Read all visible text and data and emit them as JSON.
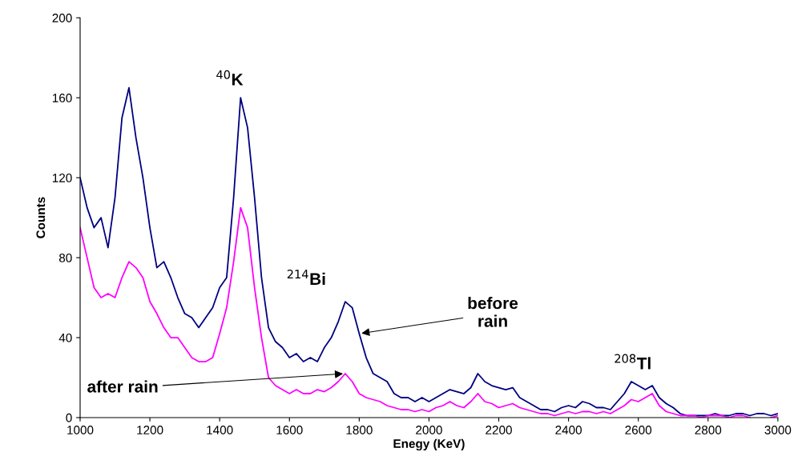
{
  "chart_data": {
    "type": "line",
    "xlabel": "Enegy (KeV)",
    "ylabel": "Counts",
    "xlim": [
      1000,
      3000
    ],
    "xticks": [
      1000,
      1200,
      1400,
      1600,
      1800,
      2000,
      2200,
      2400,
      2600,
      2800,
      3000
    ],
    "ylim": [
      0,
      200
    ],
    "yticks": [
      0,
      40,
      80,
      120,
      160,
      200
    ],
    "grid": false,
    "legend": false,
    "x": [
      1000,
      1020,
      1040,
      1060,
      1080,
      1100,
      1120,
      1140,
      1160,
      1180,
      1200,
      1220,
      1240,
      1260,
      1280,
      1300,
      1320,
      1340,
      1360,
      1380,
      1400,
      1420,
      1440,
      1460,
      1480,
      1500,
      1520,
      1540,
      1560,
      1580,
      1600,
      1620,
      1640,
      1660,
      1680,
      1700,
      1720,
      1740,
      1760,
      1780,
      1800,
      1820,
      1840,
      1860,
      1880,
      1900,
      1920,
      1940,
      1960,
      1980,
      2000,
      2020,
      2040,
      2060,
      2080,
      2100,
      2120,
      2140,
      2160,
      2180,
      2200,
      2220,
      2240,
      2260,
      2280,
      2300,
      2320,
      2340,
      2360,
      2380,
      2400,
      2420,
      2440,
      2460,
      2480,
      2500,
      2520,
      2540,
      2560,
      2580,
      2600,
      2620,
      2640,
      2660,
      2680,
      2700,
      2720,
      2740,
      2760,
      2780,
      2800,
      2820,
      2840,
      2860,
      2880,
      2900,
      2920,
      2940,
      2960,
      2980,
      3000
    ],
    "series": [
      {
        "color": "#000080",
        "values": [
          120,
          105,
          95,
          100,
          85,
          110,
          150,
          165,
          140,
          120,
          95,
          75,
          78,
          70,
          60,
          52,
          50,
          45,
          50,
          55,
          65,
          70,
          110,
          160,
          145,
          110,
          70,
          45,
          38,
          35,
          30,
          32,
          28,
          30,
          28,
          35,
          40,
          48,
          58,
          55,
          42,
          30,
          22,
          20,
          18,
          12,
          10,
          10,
          8,
          10,
          8,
          10,
          12,
          14,
          13,
          12,
          15,
          22,
          18,
          16,
          15,
          14,
          15,
          10,
          8,
          6,
          4,
          4,
          3,
          5,
          6,
          5,
          8,
          7,
          5,
          5,
          4,
          8,
          12,
          18,
          16,
          14,
          16,
          10,
          7,
          5,
          2,
          1,
          1,
          1,
          1,
          2,
          1,
          1,
          2,
          2,
          1,
          2,
          2,
          1,
          2
        ]
      },
      {
        "color": "#ff00ff",
        "values": [
          95,
          80,
          65,
          60,
          62,
          60,
          70,
          78,
          75,
          70,
          58,
          52,
          45,
          40,
          40,
          35,
          30,
          28,
          28,
          30,
          42,
          55,
          78,
          105,
          95,
          65,
          40,
          20,
          16,
          14,
          12,
          14,
          12,
          12,
          14,
          13,
          15,
          18,
          22,
          18,
          12,
          10,
          9,
          8,
          6,
          5,
          4,
          4,
          3,
          4,
          3,
          5,
          6,
          8,
          6,
          5,
          8,
          12,
          8,
          7,
          5,
          6,
          7,
          5,
          4,
          3,
          2,
          2,
          1,
          2,
          3,
          2,
          3,
          3,
          2,
          3,
          2,
          4,
          6,
          9,
          8,
          10,
          12,
          6,
          3,
          2,
          1,
          1,
          1,
          0,
          1,
          1,
          1,
          0,
          1,
          1,
          0,
          null,
          null,
          0,
          1
        ]
      }
    ],
    "annotations": [
      {
        "text": "$^{40}$K",
        "x": 1460,
        "y": 160
      },
      {
        "text": "$^{214}$Bi",
        "x": 1760,
        "y": 58
      },
      {
        "text": "before rain",
        "x": 1800,
        "y": 42
      },
      {
        "text": "after rain",
        "x": 1760,
        "y": 22
      },
      {
        "text": "$^{208}$Tl",
        "x": 2600,
        "y": 18
      }
    ]
  }
}
